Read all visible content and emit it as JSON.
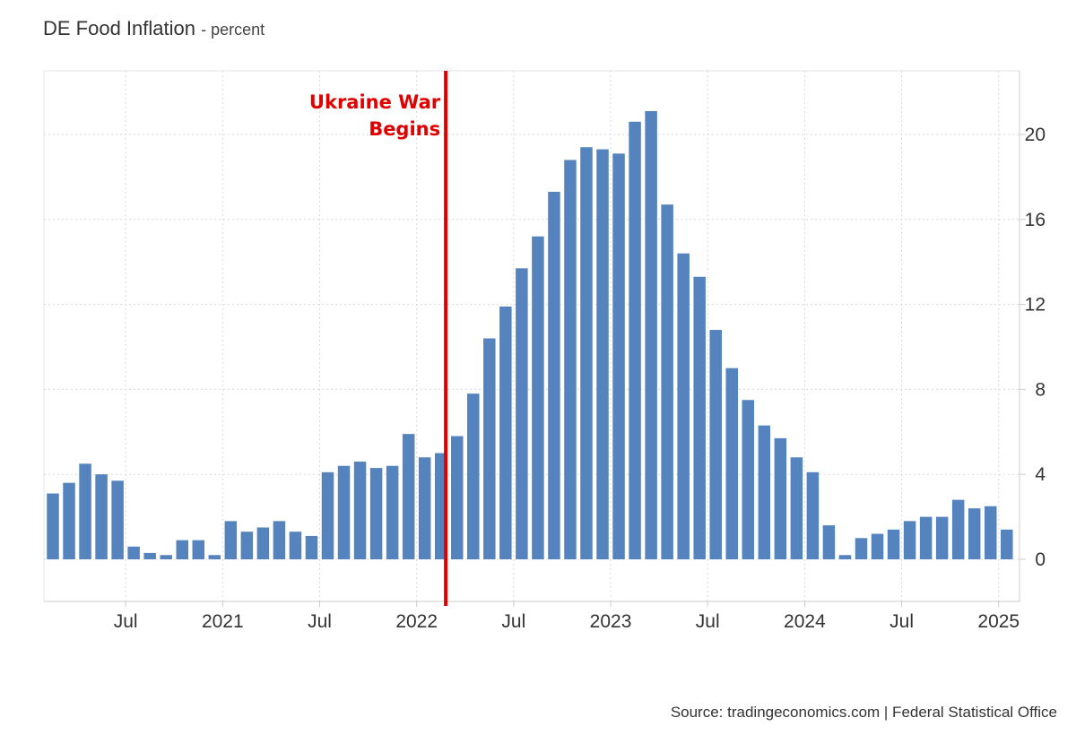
{
  "chart_data": {
    "type": "bar",
    "title": "DE Food Inflation",
    "unit": "- percent",
    "source": "Source: tradingeconomics.com | Federal Statistical Office",
    "colors": {
      "bar": "#5583bd",
      "annotation": "#e00000",
      "grid": "#d9d9d9",
      "axis": "#cccccc"
    },
    "ylim": [
      -2.5,
      23
    ],
    "yticks": [
      0,
      4,
      8,
      12,
      16,
      20
    ],
    "xlabel": "",
    "ylabel": "",
    "x_ticks": [
      {
        "label": "Jul",
        "index": 5
      },
      {
        "label": "2021",
        "index": 11
      },
      {
        "label": "Jul",
        "index": 17
      },
      {
        "label": "2022",
        "index": 23
      },
      {
        "label": "Jul",
        "index": 29
      },
      {
        "label": "2023",
        "index": 35
      },
      {
        "label": "Jul",
        "index": 41
      },
      {
        "label": "2024",
        "index": 47
      },
      {
        "label": "Jul",
        "index": 53
      },
      {
        "label": "2025",
        "index": 59
      }
    ],
    "categories": [
      "2020-02",
      "2020-03",
      "2020-04",
      "2020-05",
      "2020-06",
      "2020-07",
      "2020-08",
      "2020-09",
      "2020-10",
      "2020-11",
      "2020-12",
      "2021-01",
      "2021-02",
      "2021-03",
      "2021-04",
      "2021-05",
      "2021-06",
      "2021-07",
      "2021-08",
      "2021-09",
      "2021-10",
      "2021-11",
      "2021-12",
      "2022-01",
      "2022-02",
      "2022-03",
      "2022-04",
      "2022-05",
      "2022-06",
      "2022-07",
      "2022-08",
      "2022-09",
      "2022-10",
      "2022-11",
      "2022-12",
      "2023-01",
      "2023-02",
      "2023-03",
      "2023-04",
      "2023-05",
      "2023-06",
      "2023-07",
      "2023-08",
      "2023-09",
      "2023-10",
      "2023-11",
      "2023-12",
      "2024-01",
      "2024-02",
      "2024-03",
      "2024-04",
      "2024-05",
      "2024-06",
      "2024-07",
      "2024-08",
      "2024-09",
      "2024-10",
      "2024-11",
      "2024-12",
      "2025-01"
    ],
    "values": [
      3.1,
      3.6,
      4.5,
      4.0,
      3.7,
      0.6,
      0.3,
      0.2,
      0.9,
      0.9,
      0.2,
      1.8,
      1.3,
      1.5,
      1.8,
      1.3,
      1.1,
      4.1,
      4.4,
      4.6,
      4.3,
      4.4,
      5.9,
      4.8,
      5.0,
      5.8,
      7.8,
      10.4,
      11.9,
      13.7,
      15.2,
      17.3,
      18.8,
      19.4,
      19.3,
      19.1,
      20.6,
      21.1,
      16.7,
      14.4,
      13.3,
      10.8,
      9.0,
      7.5,
      6.3,
      5.7,
      4.8,
      4.1,
      1.6,
      0.2,
      1.0,
      1.2,
      1.4,
      1.8,
      2.0,
      2.0,
      2.8,
      2.4,
      2.5,
      1.4
    ],
    "annotation": {
      "line1": "Ukraine War",
      "line2": "Begins",
      "x_position_index": 24.3
    }
  }
}
